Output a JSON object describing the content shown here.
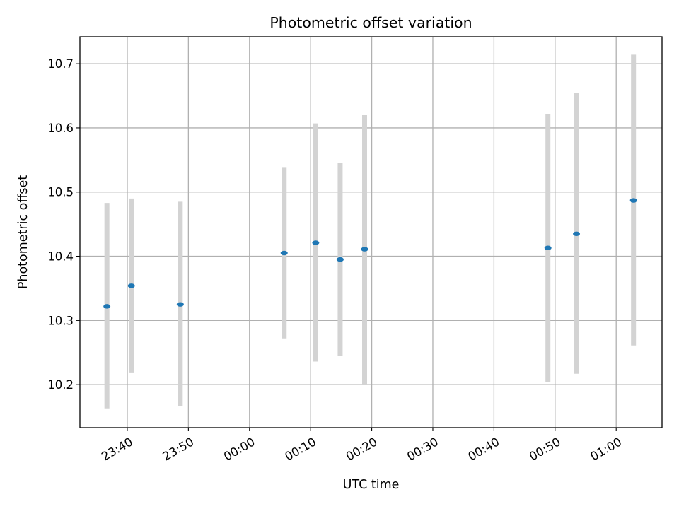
{
  "chart_data": {
    "type": "scatter",
    "title": "Photometric offset variation",
    "xlabel": "UTC time",
    "ylabel": "Photometric offset",
    "grid": true,
    "legend": "none",
    "x_axis_type": "time",
    "xlim": [
      "23:32:15",
      "01:07:30"
    ],
    "ylim": [
      10.133,
      10.742
    ],
    "x_ticks": [
      "23:40",
      "23:50",
      "00:00",
      "00:10",
      "00:20",
      "00:30",
      "00:40",
      "00:50",
      "01:00"
    ],
    "y_ticks": [
      "10.2",
      "10.3",
      "10.4",
      "10.5",
      "10.6",
      "10.7"
    ],
    "series": [
      {
        "marker_color": "#1f77b4",
        "errorbar_color": "#d3d3d3",
        "points": [
          {
            "x": "23:36:40",
            "y": 10.322,
            "y_low": 10.163,
            "y_high": 10.483
          },
          {
            "x": "23:40:40",
            "y": 10.354,
            "y_low": 10.219,
            "y_high": 10.49
          },
          {
            "x": "23:48:40",
            "y": 10.325,
            "y_low": 10.167,
            "y_high": 10.485
          },
          {
            "x": "00:05:40",
            "y": 10.405,
            "y_low": 10.272,
            "y_high": 10.539
          },
          {
            "x": "00:10:50",
            "y": 10.421,
            "y_low": 10.236,
            "y_high": 10.607
          },
          {
            "x": "00:14:50",
            "y": 10.395,
            "y_low": 10.245,
            "y_high": 10.545
          },
          {
            "x": "00:18:50",
            "y": 10.411,
            "y_low": 10.2,
            "y_high": 10.62
          },
          {
            "x": "00:48:50",
            "y": 10.413,
            "y_low": 10.204,
            "y_high": 10.622
          },
          {
            "x": "00:53:30",
            "y": 10.435,
            "y_low": 10.217,
            "y_high": 10.655
          },
          {
            "x": "01:02:50",
            "y": 10.487,
            "y_low": 10.261,
            "y_high": 10.714
          }
        ]
      }
    ]
  }
}
